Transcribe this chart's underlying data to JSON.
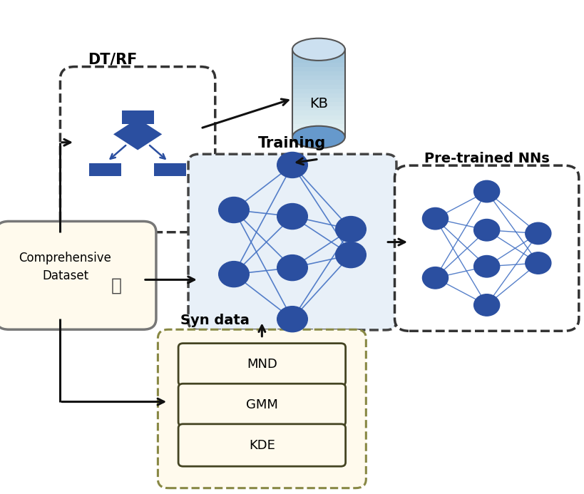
{
  "bg_color": "#ffffff",
  "node_blue": "#2b4fa0",
  "line_blue": "#4472c4",
  "kb_top_color": "#b8d4e8",
  "kb_mid_color": "#7aafd4",
  "kb_bot_color": "#4a80b4",
  "comp_dataset_bg": "#fffaed",
  "comp_dataset_border": "#888888",
  "syn_data_bg": "#fffaed",
  "syn_data_border": "#888888",
  "training_bg": "#e8f0f8",
  "training_border": "#444444",
  "pretrained_border": "#444444",
  "dtrf_border": "#333333",
  "title_dtrf": "DT/RF",
  "title_training": "Training",
  "title_syndata": "Syn data",
  "title_pretrained": "Pre-trained NNs",
  "label_kb": "KB",
  "label_dataset": "Comprehensive\nDataset",
  "label_mnd": "MND",
  "label_gmm": "GMM",
  "label_kde": "KDE",
  "arrow_color": "#111111",
  "dt_color": "#2b4fa0"
}
